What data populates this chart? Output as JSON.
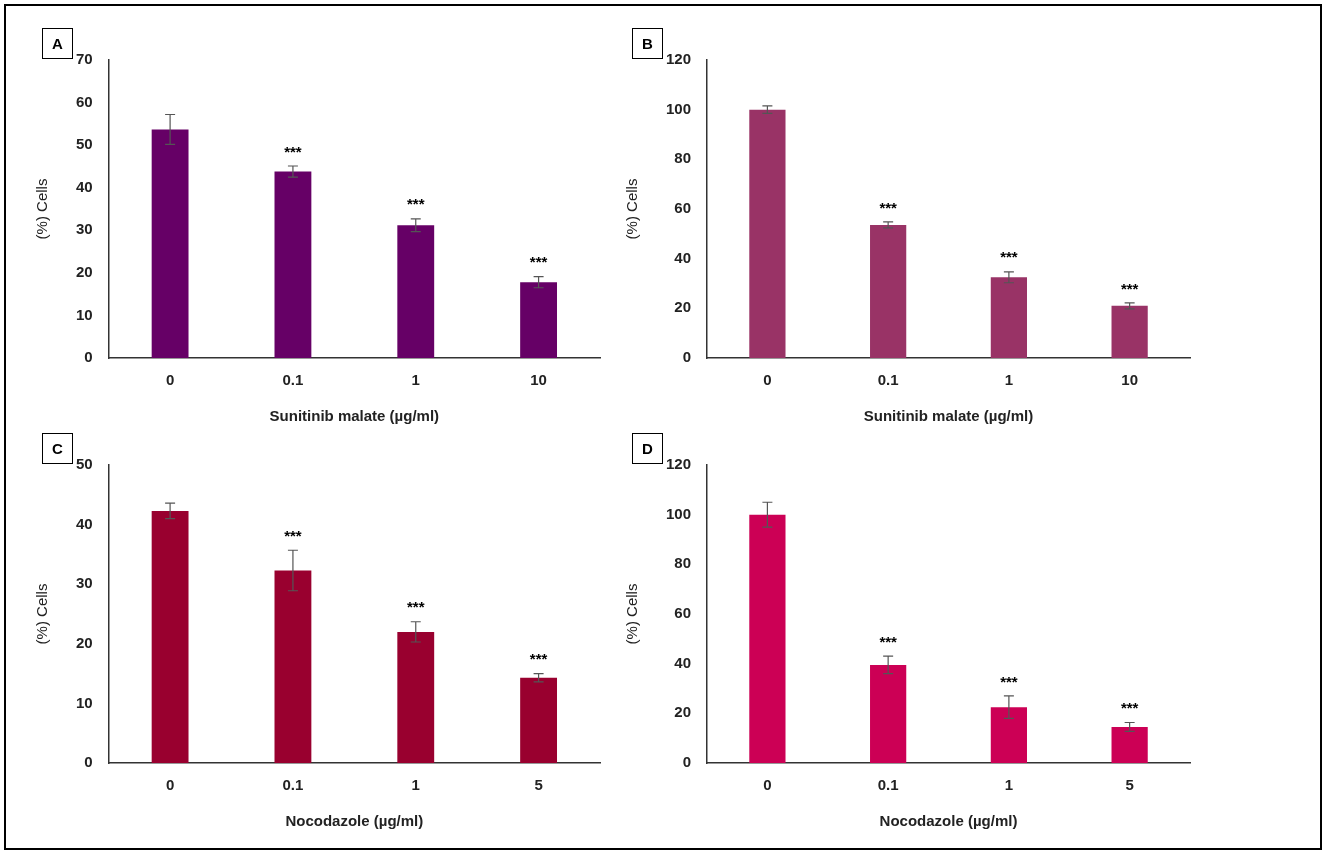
{
  "chart_data": [
    {
      "type": "bar",
      "title": "A",
      "xlabel": "Sunitinib malate (µg/ml)",
      "ylabel": "(%) Cells",
      "categories": [
        "0",
        "0.1",
        "1",
        "10"
      ],
      "series": [
        {
          "color": "#660066",
          "values": [
            53.7,
            43.8,
            31.2,
            17.8
          ],
          "errors": [
            3.5,
            1.3,
            1.5,
            1.3
          ]
        }
      ],
      "ylim": [
        0,
        70
      ],
      "yticks": [
        0,
        10,
        20,
        30,
        40,
        50,
        60,
        70
      ],
      "grid": false,
      "legend": false,
      "annotations": [
        {
          "text": "***",
          "x": "0.1",
          "y": 43.8
        },
        {
          "text": "***",
          "x": "1",
          "y": 31.2
        },
        {
          "text": "***",
          "x": "10",
          "y": 17.8
        }
      ]
    },
    {
      "type": "bar",
      "title": "B",
      "xlabel": "Sunitinib malate (µg/ml)",
      "ylabel": "(%) Cells",
      "categories": [
        "0",
        "0.1",
        "1",
        "10"
      ],
      "series": [
        {
          "color": "#993366",
          "values": [
            100,
            53.6,
            32.5,
            21
          ],
          "errors": [
            1.5,
            1.2,
            2.2,
            1.2
          ]
        }
      ],
      "ylim": [
        0,
        120
      ],
      "yticks": [
        0,
        20,
        40,
        60,
        80,
        100,
        120
      ],
      "grid": false,
      "legend": false,
      "annotations": [
        {
          "text": "***",
          "x": "0.1",
          "y": 53.6
        },
        {
          "text": "***",
          "x": "1",
          "y": 32.5
        },
        {
          "text": "***",
          "x": "10",
          "y": 21
        }
      ]
    },
    {
      "type": "bar",
      "title": "C",
      "xlabel": "Nocodazole (µg/ml)",
      "ylabel": "(%) Cells",
      "categories": [
        "0",
        "0.1",
        "1",
        "5"
      ],
      "series": [
        {
          "color": "#99002f",
          "values": [
            42.3,
            32.3,
            22,
            14.3
          ],
          "errors": [
            1.3,
            3.4,
            1.7,
            0.7
          ]
        }
      ],
      "ylim": [
        0,
        50
      ],
      "yticks": [
        0,
        10,
        20,
        30,
        40,
        50
      ],
      "grid": false,
      "legend": false,
      "annotations": [
        {
          "text": "***",
          "x": "0.1",
          "y": 32.3
        },
        {
          "text": "***",
          "x": "1",
          "y": 22
        },
        {
          "text": "***",
          "x": "5",
          "y": 14.3
        }
      ]
    },
    {
      "type": "bar",
      "title": "D",
      "xlabel": "Nocodazole (µg/ml)",
      "ylabel": "(%) Cells",
      "categories": [
        "0",
        "0.1",
        "1",
        "5"
      ],
      "series": [
        {
          "color": "#cc0055",
          "values": [
            100,
            39.5,
            22.5,
            14.5
          ],
          "errors": [
            5,
            3.5,
            4.5,
            1.8
          ]
        }
      ],
      "ylim": [
        0,
        120
      ],
      "yticks": [
        0,
        20,
        40,
        60,
        80,
        100,
        120
      ],
      "grid": false,
      "legend": false,
      "annotations": [
        {
          "text": "***",
          "x": "0.1",
          "y": 39.5
        },
        {
          "text": "***",
          "x": "1",
          "y": 22.5
        },
        {
          "text": "***",
          "x": "5",
          "y": 14.5
        }
      ]
    }
  ]
}
